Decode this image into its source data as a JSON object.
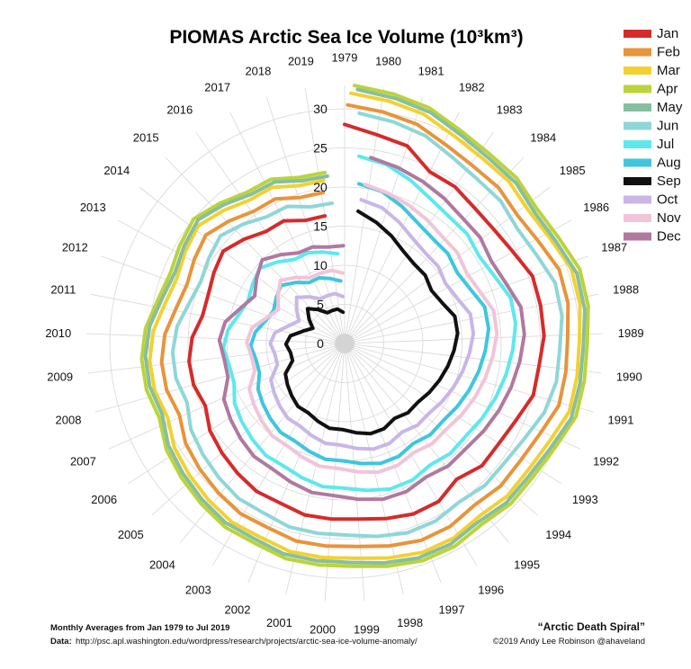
{
  "chart_data": {
    "type": "line",
    "subtype": "polar-spiral",
    "title": "PIOMAS Arctic Sea Ice Volume (10³km³)",
    "years": [
      "1979",
      "1980",
      "1981",
      "1982",
      "1983",
      "1984",
      "1985",
      "1986",
      "1987",
      "1988",
      "1989",
      "1990",
      "1991",
      "1992",
      "1993",
      "1994",
      "1995",
      "1996",
      "1997",
      "1998",
      "1999",
      "2000",
      "2001",
      "2002",
      "2003",
      "2004",
      "2005",
      "2006",
      "2007",
      "2008",
      "2009",
      "2010",
      "2011",
      "2012",
      "2013",
      "2014",
      "2015",
      "2016",
      "2017",
      "2018",
      "2019"
    ],
    "radial_ticks": [
      "0",
      "5",
      "10",
      "15",
      "20",
      "25",
      "30"
    ],
    "rlim": [
      0,
      33
    ],
    "grid": true,
    "legend_position": "top-right",
    "series": [
      {
        "name": "Jan",
        "color": "#d62b2b",
        "values": [
          28.0,
          27.0,
          26.5,
          24.5,
          24.5,
          24.0,
          24.0,
          24.5,
          25.5,
          25.5,
          25.5,
          25.0,
          25.0,
          24.0,
          23.5,
          23.5,
          22.5,
          23.5,
          23.5,
          23.0,
          22.5,
          22.5,
          22.5,
          22.0,
          22.0,
          21.5,
          21.0,
          20.5,
          19.5,
          20.0,
          20.0,
          19.5,
          18.5,
          18.5,
          19.0,
          19.5,
          18.5,
          17.5,
          17.5,
          16.5,
          16.5
        ]
      },
      {
        "name": "Feb",
        "color": "#e8943a",
        "values": [
          30.5,
          30.0,
          29.5,
          28.5,
          28.0,
          28.0,
          27.5,
          28.0,
          29.0,
          29.0,
          28.5,
          28.5,
          28.5,
          27.5,
          27.0,
          27.0,
          26.5,
          27.0,
          27.0,
          26.5,
          26.0,
          26.0,
          26.0,
          25.5,
          25.5,
          25.0,
          24.5,
          24.0,
          23.0,
          23.5,
          23.5,
          23.0,
          22.0,
          21.5,
          22.0,
          22.5,
          21.5,
          20.5,
          20.5,
          19.5,
          19.5
        ]
      },
      {
        "name": "Mar",
        "color": "#f2d131",
        "values": [
          32.0,
          31.5,
          31.0,
          30.0,
          29.5,
          29.5,
          29.0,
          29.5,
          30.5,
          30.5,
          30.0,
          30.0,
          30.0,
          29.0,
          28.5,
          28.5,
          28.0,
          28.5,
          28.5,
          28.0,
          27.5,
          27.5,
          27.5,
          27.0,
          27.0,
          26.5,
          26.0,
          25.5,
          24.5,
          25.0,
          25.0,
          24.5,
          23.5,
          23.0,
          23.5,
          24.0,
          23.0,
          22.0,
          22.0,
          21.0,
          21.0
        ]
      },
      {
        "name": "Apr",
        "color": "#bcd33a",
        "values": [
          33.0,
          32.5,
          32.0,
          31.0,
          30.5,
          30.5,
          30.0,
          30.5,
          31.5,
          31.5,
          31.0,
          31.0,
          31.0,
          30.0,
          29.5,
          29.5,
          29.0,
          29.5,
          29.5,
          29.0,
          28.5,
          28.5,
          28.5,
          28.0,
          28.0,
          27.5,
          27.0,
          26.5,
          25.5,
          26.0,
          26.0,
          25.5,
          24.5,
          24.0,
          24.5,
          25.0,
          24.0,
          23.0,
          23.0,
          22.0,
          22.0
        ]
      },
      {
        "name": "May",
        "color": "#86bfa0",
        "values": [
          32.5,
          32.0,
          31.5,
          30.5,
          30.0,
          30.0,
          29.5,
          30.0,
          31.0,
          31.0,
          30.5,
          30.5,
          30.5,
          29.5,
          29.0,
          29.0,
          28.5,
          29.0,
          29.0,
          28.5,
          28.0,
          28.0,
          28.0,
          27.5,
          27.5,
          27.0,
          26.5,
          26.0,
          25.0,
          25.5,
          25.5,
          25.0,
          24.0,
          23.5,
          24.0,
          24.5,
          23.5,
          22.5,
          22.5,
          21.5,
          21.5
        ]
      },
      {
        "name": "Jun",
        "color": "#8fd6d8",
        "values": [
          29.5,
          29.0,
          28.5,
          27.5,
          27.0,
          27.0,
          26.5,
          27.0,
          28.0,
          28.0,
          27.5,
          27.5,
          27.0,
          26.0,
          25.5,
          25.5,
          25.0,
          25.5,
          25.5,
          25.0,
          24.5,
          24.5,
          24.5,
          24.0,
          24.0,
          23.5,
          23.0,
          22.5,
          21.5,
          22.0,
          22.0,
          21.5,
          20.5,
          20.0,
          20.5,
          21.0,
          20.0,
          19.0,
          19.0,
          18.0,
          18.0
        ]
      },
      {
        "name": "Jul",
        "color": "#5de8ee",
        "values": [
          24.0,
          23.5,
          22.5,
          21.5,
          21.0,
          21.0,
          20.5,
          21.0,
          22.0,
          22.0,
          21.5,
          21.0,
          20.5,
          20.0,
          19.5,
          19.5,
          19.0,
          19.5,
          19.5,
          19.0,
          18.5,
          18.5,
          18.0,
          17.5,
          17.5,
          17.0,
          16.5,
          16.0,
          15.0,
          15.0,
          15.5,
          15.0,
          14.0,
          13.5,
          14.0,
          14.5,
          13.5,
          12.5,
          12.5,
          12.0,
          11.5
        ]
      },
      {
        "name": "Aug",
        "color": "#3fc6de",
        "values": [
          20.5,
          20.0,
          19.0,
          18.0,
          17.5,
          17.5,
          17.0,
          17.5,
          18.5,
          18.5,
          18.0,
          17.5,
          17.0,
          16.5,
          16.0,
          16.0,
          15.5,
          16.0,
          16.0,
          15.5,
          15.0,
          15.0,
          14.5,
          14.0,
          14.0,
          13.5,
          13.0,
          12.5,
          11.5,
          11.5,
          12.0,
          11.5,
          10.5,
          10.0,
          10.5,
          11.0,
          10.0,
          9.0,
          9.0,
          8.5,
          8.0
        ]
      },
      {
        "name": "Sep",
        "color": "#111111",
        "values": [
          17.0,
          16.0,
          15.0,
          14.0,
          13.5,
          13.5,
          13.0,
          13.5,
          14.5,
          14.5,
          14.0,
          13.5,
          13.0,
          12.5,
          12.0,
          12.0,
          11.5,
          12.0,
          12.0,
          11.5,
          11.0,
          11.0,
          10.5,
          10.0,
          10.0,
          9.5,
          9.0,
          8.5,
          7.0,
          7.0,
          7.5,
          7.0,
          5.5,
          4.5,
          5.5,
          6.5,
          5.5,
          4.5,
          4.5,
          4.5,
          4.0
        ]
      },
      {
        "name": "Oct",
        "color": "#c9b6e6",
        "values": [
          18.5,
          18.0,
          17.0,
          16.0,
          15.5,
          15.5,
          15.0,
          15.5,
          16.5,
          16.5,
          16.0,
          15.5,
          15.0,
          14.5,
          14.0,
          14.0,
          13.5,
          14.0,
          14.0,
          13.5,
          13.0,
          13.0,
          12.5,
          12.0,
          12.0,
          11.5,
          11.0,
          10.5,
          9.0,
          9.0,
          9.5,
          9.0,
          7.5,
          6.5,
          7.5,
          8.5,
          7.5,
          6.5,
          6.5,
          6.5,
          6.0
        ]
      },
      {
        "name": "Nov",
        "color": "#f2c4d8",
        "values": [
          20.5,
          20.0,
          19.5,
          19.0,
          18.5,
          18.5,
          18.0,
          18.5,
          19.5,
          19.5,
          19.0,
          18.5,
          18.0,
          17.5,
          17.0,
          17.0,
          16.5,
          17.0,
          17.0,
          16.5,
          16.0,
          16.0,
          15.5,
          15.0,
          15.0,
          14.5,
          14.0,
          13.5,
          12.0,
          12.0,
          12.5,
          12.0,
          10.5,
          9.5,
          10.5,
          11.5,
          10.5,
          9.5,
          9.5,
          9.5,
          9.0
        ]
      },
      {
        "name": "Dec",
        "color": "#b0799f",
        "values": [
          24.0,
          23.5,
          23.0,
          22.5,
          22.0,
          22.0,
          21.5,
          22.0,
          23.0,
          23.0,
          22.5,
          22.0,
          21.5,
          21.0,
          20.5,
          20.5,
          20.0,
          20.5,
          20.5,
          20.0,
          19.5,
          19.5,
          19.0,
          18.5,
          18.5,
          18.0,
          17.5,
          17.0,
          15.5,
          15.5,
          16.0,
          15.5,
          14.0,
          13.0,
          14.0,
          15.0,
          14.0,
          13.0,
          13.0,
          12.5,
          12.5
        ]
      }
    ]
  },
  "footer": {
    "left_line1": "Monthly Averages from Jan 1979 to Jul 2019",
    "data_label": "Data:",
    "data_url": "http://psc.apl.washington.edu/wordpress/research/projects/arctic-sea-ice-volume-anomaly/",
    "credit_title": "“Arctic Death Spiral”",
    "credit_line": "©2019 Andy Lee Robinson @ahaveland"
  }
}
